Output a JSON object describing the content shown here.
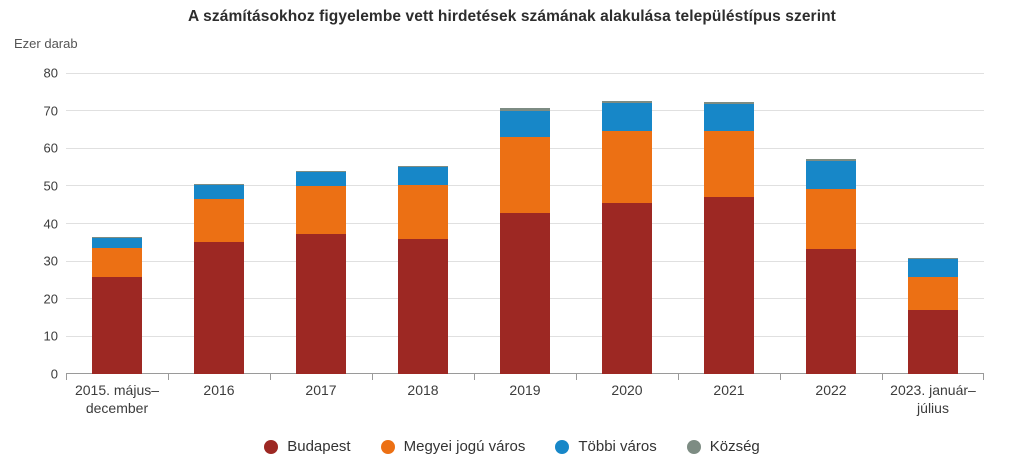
{
  "title": "A számításokhoz figyelembe vett hirdetések számának alakulása településtípus szerint",
  "chart_data": {
    "type": "bar",
    "stacked": true,
    "title": "A számításokhoz figyelembe vett hirdetések számának alakulása településtípus szerint",
    "ylabel": "Ezer darab",
    "xlabel": "",
    "ylim": [
      0,
      80
    ],
    "ytick_step": 10,
    "grid": true,
    "legend_position": "bottom",
    "y_tick_labels": [
      "0",
      "10",
      "20",
      "30",
      "40",
      "50",
      "60",
      "70",
      "80"
    ],
    "categories": [
      "2015. május–\ndecember",
      "2016",
      "2017",
      "2018",
      "2019",
      "2020",
      "2021",
      "2022",
      "2023. január–\njúlius"
    ],
    "series": [
      {
        "name": "Budapest",
        "color": "#9d2823",
        "values": [
          25.7,
          35.2,
          37.2,
          36.0,
          42.7,
          45.5,
          47.0,
          33.1,
          17.0
        ]
      },
      {
        "name": "Megyei jogú város",
        "color": "#ec7014",
        "values": [
          7.7,
          11.4,
          12.7,
          14.3,
          20.4,
          19.0,
          17.6,
          16.1,
          8.7
        ]
      },
      {
        "name": "Többi város",
        "color": "#1787c8",
        "values": [
          2.7,
          3.6,
          3.8,
          4.7,
          6.9,
          7.5,
          7.1,
          7.3,
          4.9
        ]
      },
      {
        "name": "Község",
        "color": "#7d8c83",
        "values": [
          0.2,
          0.3,
          0.2,
          0.3,
          0.6,
          0.5,
          0.6,
          0.6,
          0.3
        ]
      }
    ]
  },
  "style_colors": {
    "gridline": "#e0e0e0",
    "axis_line": "#9a9a9a",
    "title_text": "#2d2d2d",
    "tick_text": "#3c3c3c",
    "unit_text": "#555555"
  }
}
